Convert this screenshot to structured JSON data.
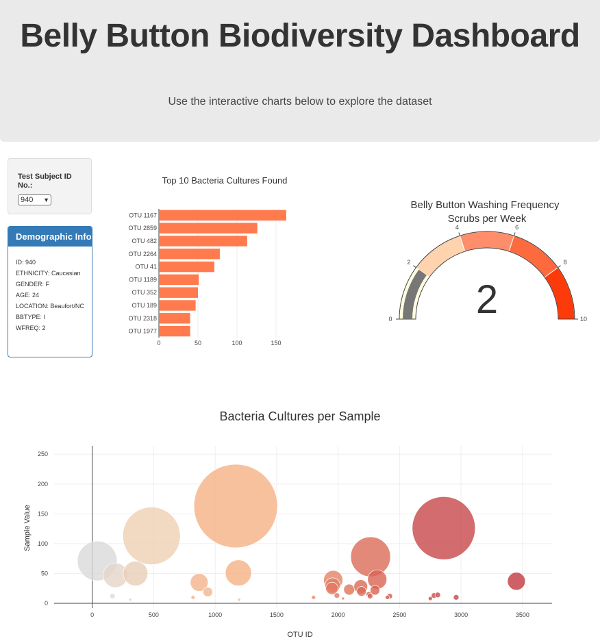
{
  "header": {
    "title": "Belly Button Biodiversity Dashboard",
    "subtitle": "Use the interactive charts below to explore the dataset"
  },
  "selector": {
    "label": "Test Subject ID No.:",
    "value": "940"
  },
  "demographics": {
    "title": "Demographic Info",
    "lines": [
      "ID: 940",
      "ETHNICITY: Caucasian",
      "GENDER: F",
      "AGE: 24",
      "LOCATION: Beaufort/NC",
      "BBTYPE: I",
      "WFREQ: 2"
    ]
  },
  "colors": {
    "bar": "#ff7b4e",
    "panel_header": "#337ab7",
    "jumbotron": "#eaeaea"
  },
  "chart_data": [
    {
      "type": "bar",
      "orientation": "horizontal",
      "title": "Top 10 Bacteria Cultures Found",
      "categories": [
        "OTU 1167",
        "OTU 2859",
        "OTU 482",
        "OTU 2264",
        "OTU 41",
        "OTU 1189",
        "OTU 352",
        "OTU 189",
        "OTU 2318",
        "OTU 1977"
      ],
      "values": [
        163,
        126,
        113,
        78,
        71,
        51,
        50,
        47,
        40,
        40
      ],
      "xticks": [
        0,
        50,
        100,
        150
      ],
      "xlim": [
        0,
        171
      ]
    },
    {
      "type": "gauge",
      "title": "Belly Button Washing Frequency",
      "subtitle": "Scrubs per Week",
      "value": 2,
      "range": [
        0,
        10
      ],
      "ticks": [
        0,
        2,
        4,
        6,
        8,
        10
      ],
      "steps": [
        {
          "range": [
            0,
            2
          ],
          "color": "#ffffde"
        },
        {
          "range": [
            2,
            4
          ],
          "color": "#fed3ad"
        },
        {
          "range": [
            4,
            6
          ],
          "color": "#fe8d6b"
        },
        {
          "range": [
            6,
            8
          ],
          "color": "#fd6a3d"
        },
        {
          "range": [
            8,
            10
          ],
          "color": "#fd3a09"
        }
      ],
      "bar_color": "#777777"
    },
    {
      "type": "scatter",
      "title": "Bacteria Cultures per Sample",
      "xlabel": "OTU ID",
      "ylabel": "Sample Value",
      "xticks": [
        0,
        500,
        1000,
        1500,
        2000,
        2500,
        3000,
        3500
      ],
      "yticks": [
        0,
        50,
        100,
        150,
        200,
        250
      ],
      "xlim": [
        -310,
        3740
      ],
      "ylim": [
        -8,
        264
      ],
      "grid": true,
      "points": [
        {
          "x": 41,
          "y": 71,
          "r": 29,
          "c": "#d9d9d9"
        },
        {
          "x": 189,
          "y": 47,
          "r": 18,
          "c": "#e5d6c9"
        },
        {
          "x": 352,
          "y": 50,
          "r": 18,
          "c": "#e8cdb6"
        },
        {
          "x": 482,
          "y": 113,
          "r": 42,
          "c": "#efcfb3"
        },
        {
          "x": 1167,
          "y": 163,
          "r": 61,
          "c": "#f6b186"
        },
        {
          "x": 1189,
          "y": 51,
          "r": 19,
          "c": "#f6b186"
        },
        {
          "x": 870,
          "y": 35,
          "r": 13,
          "c": "#f3b48d"
        },
        {
          "x": 940,
          "y": 19,
          "r": 7,
          "c": "#f2b58e"
        },
        {
          "x": 165,
          "y": 12,
          "r": 4,
          "c": "#dedcd9"
        },
        {
          "x": 310,
          "y": 6,
          "r": 2,
          "c": "#e6c9b4"
        },
        {
          "x": 820,
          "y": 10,
          "r": 3,
          "c": "#f2b58e"
        },
        {
          "x": 1195,
          "y": 6,
          "r": 2,
          "c": "#f6b186"
        },
        {
          "x": 1800,
          "y": 10,
          "r": 3,
          "c": "#ea8b6f"
        },
        {
          "x": 1960,
          "y": 39,
          "r": 14,
          "c": "#e48468"
        },
        {
          "x": 1955,
          "y": 30,
          "r": 11,
          "c": "#e27e63"
        },
        {
          "x": 1950,
          "y": 25,
          "r": 9,
          "c": "#e27a60"
        },
        {
          "x": 1990,
          "y": 13,
          "r": 4,
          "c": "#e07a60"
        },
        {
          "x": 2090,
          "y": 23,
          "r": 8,
          "c": "#de7659"
        },
        {
          "x": 2040,
          "y": 8,
          "r": 2,
          "c": "#de7659"
        },
        {
          "x": 2264,
          "y": 78,
          "r": 29,
          "c": "#dc6b57"
        },
        {
          "x": 2184,
          "y": 28,
          "r": 10,
          "c": "#da6b55"
        },
        {
          "x": 2190,
          "y": 20,
          "r": 7,
          "c": "#da6b55"
        },
        {
          "x": 2318,
          "y": 40,
          "r": 14,
          "c": "#d86452"
        },
        {
          "x": 2300,
          "y": 22,
          "r": 7,
          "c": "#d76250"
        },
        {
          "x": 2250,
          "y": 15,
          "r": 4,
          "c": "#d76250"
        },
        {
          "x": 2420,
          "y": 12,
          "r": 4,
          "c": "#d35a4e"
        },
        {
          "x": 2400,
          "y": 10,
          "r": 3,
          "c": "#d35a4e"
        },
        {
          "x": 2260,
          "y": 12,
          "r": 4,
          "c": "#d76250"
        },
        {
          "x": 2859,
          "y": 126,
          "r": 46,
          "c": "#c8474a"
        },
        {
          "x": 2780,
          "y": 13,
          "r": 4,
          "c": "#ca4c4a"
        },
        {
          "x": 2810,
          "y": 14,
          "r": 4,
          "c": "#ca4c4a"
        },
        {
          "x": 2750,
          "y": 8,
          "r": 3,
          "c": "#ca4c4a"
        },
        {
          "x": 2960,
          "y": 10,
          "r": 4,
          "c": "#c8474a"
        },
        {
          "x": 3450,
          "y": 37,
          "r": 13,
          "c": "#c0393f"
        }
      ]
    }
  ]
}
